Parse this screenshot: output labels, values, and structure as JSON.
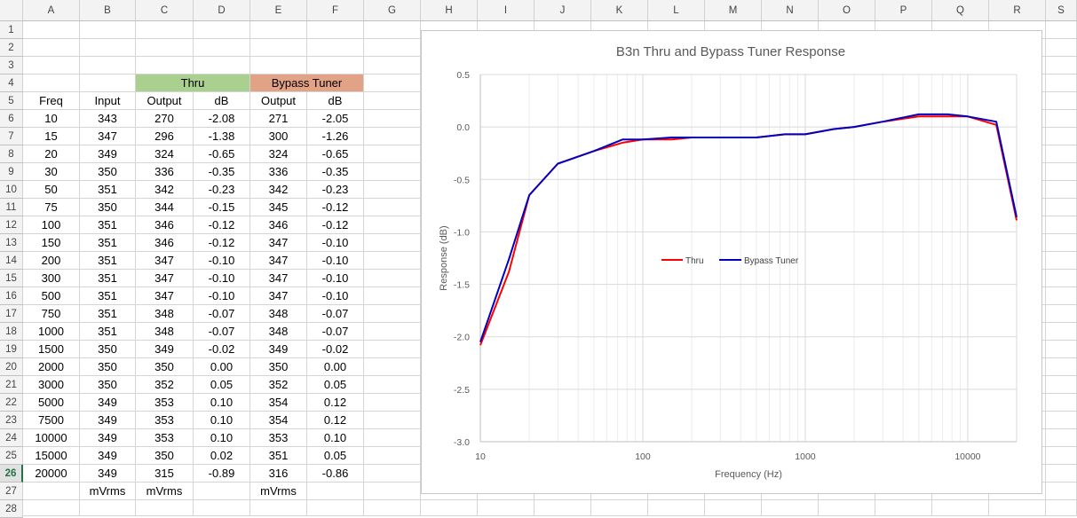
{
  "spreadsheet": {
    "columns": [
      "A",
      "B",
      "C",
      "D",
      "E",
      "F",
      "G",
      "H",
      "I",
      "J",
      "K",
      "L",
      "M",
      "N",
      "O",
      "P",
      "Q",
      "R",
      "S"
    ],
    "selected_row": 26,
    "header_row_4": {
      "thru": "Thru",
      "bypass": "Bypass Tuner"
    },
    "header_row_5": [
      "Freq",
      "Input",
      "Output",
      "dB",
      "Output",
      "dB"
    ],
    "rows": [
      [
        "10",
        "343",
        "270",
        "-2.08",
        "271",
        "-2.05"
      ],
      [
        "15",
        "347",
        "296",
        "-1.38",
        "300",
        "-1.26"
      ],
      [
        "20",
        "349",
        "324",
        "-0.65",
        "324",
        "-0.65"
      ],
      [
        "30",
        "350",
        "336",
        "-0.35",
        "336",
        "-0.35"
      ],
      [
        "50",
        "351",
        "342",
        "-0.23",
        "342",
        "-0.23"
      ],
      [
        "75",
        "350",
        "344",
        "-0.15",
        "345",
        "-0.12"
      ],
      [
        "100",
        "351",
        "346",
        "-0.12",
        "346",
        "-0.12"
      ],
      [
        "150",
        "351",
        "346",
        "-0.12",
        "347",
        "-0.10"
      ],
      [
        "200",
        "351",
        "347",
        "-0.10",
        "347",
        "-0.10"
      ],
      [
        "300",
        "351",
        "347",
        "-0.10",
        "347",
        "-0.10"
      ],
      [
        "500",
        "351",
        "347",
        "-0.10",
        "347",
        "-0.10"
      ],
      [
        "750",
        "351",
        "348",
        "-0.07",
        "348",
        "-0.07"
      ],
      [
        "1000",
        "351",
        "348",
        "-0.07",
        "348",
        "-0.07"
      ],
      [
        "1500",
        "350",
        "349",
        "-0.02",
        "349",
        "-0.02"
      ],
      [
        "2000",
        "350",
        "350",
        "0.00",
        "350",
        "0.00"
      ],
      [
        "3000",
        "350",
        "352",
        "0.05",
        "352",
        "0.05"
      ],
      [
        "5000",
        "349",
        "353",
        "0.10",
        "354",
        "0.12"
      ],
      [
        "7500",
        "349",
        "353",
        "0.10",
        "354",
        "0.12"
      ],
      [
        "10000",
        "349",
        "353",
        "0.10",
        "353",
        "0.10"
      ],
      [
        "15000",
        "349",
        "350",
        "0.02",
        "351",
        "0.05"
      ],
      [
        "20000",
        "349",
        "315",
        "-0.89",
        "316",
        "-0.86"
      ]
    ],
    "units_row_27": [
      "",
      "mVrms",
      "mVrms",
      "",
      "mVrms",
      ""
    ]
  },
  "colors": {
    "green_header": "#a9d08e",
    "salmon_header": "#e2a286",
    "thru_line": "#ff0000",
    "bypass_line": "#0000c0",
    "selected_row": "#217346"
  },
  "chart_data": {
    "type": "line",
    "title": "B3n Thru and Bypass Tuner Response",
    "xlabel": "Frequency (Hz)",
    "ylabel": "Response (dB)",
    "x_scale": "log",
    "xlim": [
      10,
      20000
    ],
    "ylim": [
      -3.0,
      0.5
    ],
    "x_ticks": [
      "10",
      "100",
      "1000",
      "10000"
    ],
    "y_ticks": [
      "0.5",
      "0.0",
      "-0.5",
      "-1.0",
      "-1.5",
      "-2.0",
      "-2.5",
      "-3.0"
    ],
    "legend_position": "center-left",
    "x": [
      10,
      15,
      20,
      30,
      50,
      75,
      100,
      150,
      200,
      300,
      500,
      750,
      1000,
      1500,
      2000,
      3000,
      5000,
      7500,
      10000,
      15000,
      20000
    ],
    "series": [
      {
        "name": "Thru",
        "values": [
          -2.08,
          -1.38,
          -0.65,
          -0.35,
          -0.23,
          -0.15,
          -0.12,
          -0.12,
          -0.1,
          -0.1,
          -0.1,
          -0.07,
          -0.07,
          -0.02,
          0.0,
          0.05,
          0.1,
          0.1,
          0.1,
          0.02,
          -0.89
        ]
      },
      {
        "name": "Bypass Tuner",
        "values": [
          -2.05,
          -1.26,
          -0.65,
          -0.35,
          -0.23,
          -0.12,
          -0.12,
          -0.1,
          -0.1,
          -0.1,
          -0.1,
          -0.07,
          -0.07,
          -0.02,
          0.0,
          0.05,
          0.12,
          0.12,
          0.1,
          0.05,
          -0.86
        ]
      }
    ]
  }
}
